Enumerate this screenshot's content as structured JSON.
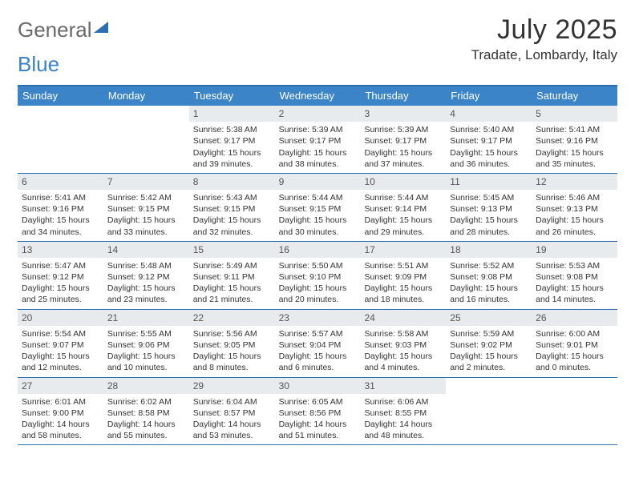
{
  "brand": {
    "part1": "General",
    "part2": "Blue"
  },
  "title": "July 2025",
  "location": "Tradate, Lombardy, Italy",
  "colors": {
    "header_bg": "#3b84c7",
    "border": "#2a6fb0",
    "daynum_bg": "#e8ebee",
    "text": "#333333",
    "logo_gray": "#6a6a6a",
    "logo_blue": "#3b82c4",
    "white": "#ffffff"
  },
  "weekdays": [
    "Sunday",
    "Monday",
    "Tuesday",
    "Wednesday",
    "Thursday",
    "Friday",
    "Saturday"
  ],
  "weeks": [
    [
      null,
      null,
      {
        "n": "1",
        "sunrise": "Sunrise: 5:38 AM",
        "sunset": "Sunset: 9:17 PM",
        "daylight": "Daylight: 15 hours and 39 minutes."
      },
      {
        "n": "2",
        "sunrise": "Sunrise: 5:39 AM",
        "sunset": "Sunset: 9:17 PM",
        "daylight": "Daylight: 15 hours and 38 minutes."
      },
      {
        "n": "3",
        "sunrise": "Sunrise: 5:39 AM",
        "sunset": "Sunset: 9:17 PM",
        "daylight": "Daylight: 15 hours and 37 minutes."
      },
      {
        "n": "4",
        "sunrise": "Sunrise: 5:40 AM",
        "sunset": "Sunset: 9:17 PM",
        "daylight": "Daylight: 15 hours and 36 minutes."
      },
      {
        "n": "5",
        "sunrise": "Sunrise: 5:41 AM",
        "sunset": "Sunset: 9:16 PM",
        "daylight": "Daylight: 15 hours and 35 minutes."
      }
    ],
    [
      {
        "n": "6",
        "sunrise": "Sunrise: 5:41 AM",
        "sunset": "Sunset: 9:16 PM",
        "daylight": "Daylight: 15 hours and 34 minutes."
      },
      {
        "n": "7",
        "sunrise": "Sunrise: 5:42 AM",
        "sunset": "Sunset: 9:15 PM",
        "daylight": "Daylight: 15 hours and 33 minutes."
      },
      {
        "n": "8",
        "sunrise": "Sunrise: 5:43 AM",
        "sunset": "Sunset: 9:15 PM",
        "daylight": "Daylight: 15 hours and 32 minutes."
      },
      {
        "n": "9",
        "sunrise": "Sunrise: 5:44 AM",
        "sunset": "Sunset: 9:15 PM",
        "daylight": "Daylight: 15 hours and 30 minutes."
      },
      {
        "n": "10",
        "sunrise": "Sunrise: 5:44 AM",
        "sunset": "Sunset: 9:14 PM",
        "daylight": "Daylight: 15 hours and 29 minutes."
      },
      {
        "n": "11",
        "sunrise": "Sunrise: 5:45 AM",
        "sunset": "Sunset: 9:13 PM",
        "daylight": "Daylight: 15 hours and 28 minutes."
      },
      {
        "n": "12",
        "sunrise": "Sunrise: 5:46 AM",
        "sunset": "Sunset: 9:13 PM",
        "daylight": "Daylight: 15 hours and 26 minutes."
      }
    ],
    [
      {
        "n": "13",
        "sunrise": "Sunrise: 5:47 AM",
        "sunset": "Sunset: 9:12 PM",
        "daylight": "Daylight: 15 hours and 25 minutes."
      },
      {
        "n": "14",
        "sunrise": "Sunrise: 5:48 AM",
        "sunset": "Sunset: 9:12 PM",
        "daylight": "Daylight: 15 hours and 23 minutes."
      },
      {
        "n": "15",
        "sunrise": "Sunrise: 5:49 AM",
        "sunset": "Sunset: 9:11 PM",
        "daylight": "Daylight: 15 hours and 21 minutes."
      },
      {
        "n": "16",
        "sunrise": "Sunrise: 5:50 AM",
        "sunset": "Sunset: 9:10 PM",
        "daylight": "Daylight: 15 hours and 20 minutes."
      },
      {
        "n": "17",
        "sunrise": "Sunrise: 5:51 AM",
        "sunset": "Sunset: 9:09 PM",
        "daylight": "Daylight: 15 hours and 18 minutes."
      },
      {
        "n": "18",
        "sunrise": "Sunrise: 5:52 AM",
        "sunset": "Sunset: 9:08 PM",
        "daylight": "Daylight: 15 hours and 16 minutes."
      },
      {
        "n": "19",
        "sunrise": "Sunrise: 5:53 AM",
        "sunset": "Sunset: 9:08 PM",
        "daylight": "Daylight: 15 hours and 14 minutes."
      }
    ],
    [
      {
        "n": "20",
        "sunrise": "Sunrise: 5:54 AM",
        "sunset": "Sunset: 9:07 PM",
        "daylight": "Daylight: 15 hours and 12 minutes."
      },
      {
        "n": "21",
        "sunrise": "Sunrise: 5:55 AM",
        "sunset": "Sunset: 9:06 PM",
        "daylight": "Daylight: 15 hours and 10 minutes."
      },
      {
        "n": "22",
        "sunrise": "Sunrise: 5:56 AM",
        "sunset": "Sunset: 9:05 PM",
        "daylight": "Daylight: 15 hours and 8 minutes."
      },
      {
        "n": "23",
        "sunrise": "Sunrise: 5:57 AM",
        "sunset": "Sunset: 9:04 PM",
        "daylight": "Daylight: 15 hours and 6 minutes."
      },
      {
        "n": "24",
        "sunrise": "Sunrise: 5:58 AM",
        "sunset": "Sunset: 9:03 PM",
        "daylight": "Daylight: 15 hours and 4 minutes."
      },
      {
        "n": "25",
        "sunrise": "Sunrise: 5:59 AM",
        "sunset": "Sunset: 9:02 PM",
        "daylight": "Daylight: 15 hours and 2 minutes."
      },
      {
        "n": "26",
        "sunrise": "Sunrise: 6:00 AM",
        "sunset": "Sunset: 9:01 PM",
        "daylight": "Daylight: 15 hours and 0 minutes."
      }
    ],
    [
      {
        "n": "27",
        "sunrise": "Sunrise: 6:01 AM",
        "sunset": "Sunset: 9:00 PM",
        "daylight": "Daylight: 14 hours and 58 minutes."
      },
      {
        "n": "28",
        "sunrise": "Sunrise: 6:02 AM",
        "sunset": "Sunset: 8:58 PM",
        "daylight": "Daylight: 14 hours and 55 minutes."
      },
      {
        "n": "29",
        "sunrise": "Sunrise: 6:04 AM",
        "sunset": "Sunset: 8:57 PM",
        "daylight": "Daylight: 14 hours and 53 minutes."
      },
      {
        "n": "30",
        "sunrise": "Sunrise: 6:05 AM",
        "sunset": "Sunset: 8:56 PM",
        "daylight": "Daylight: 14 hours and 51 minutes."
      },
      {
        "n": "31",
        "sunrise": "Sunrise: 6:06 AM",
        "sunset": "Sunset: 8:55 PM",
        "daylight": "Daylight: 14 hours and 48 minutes."
      },
      null,
      null
    ]
  ]
}
